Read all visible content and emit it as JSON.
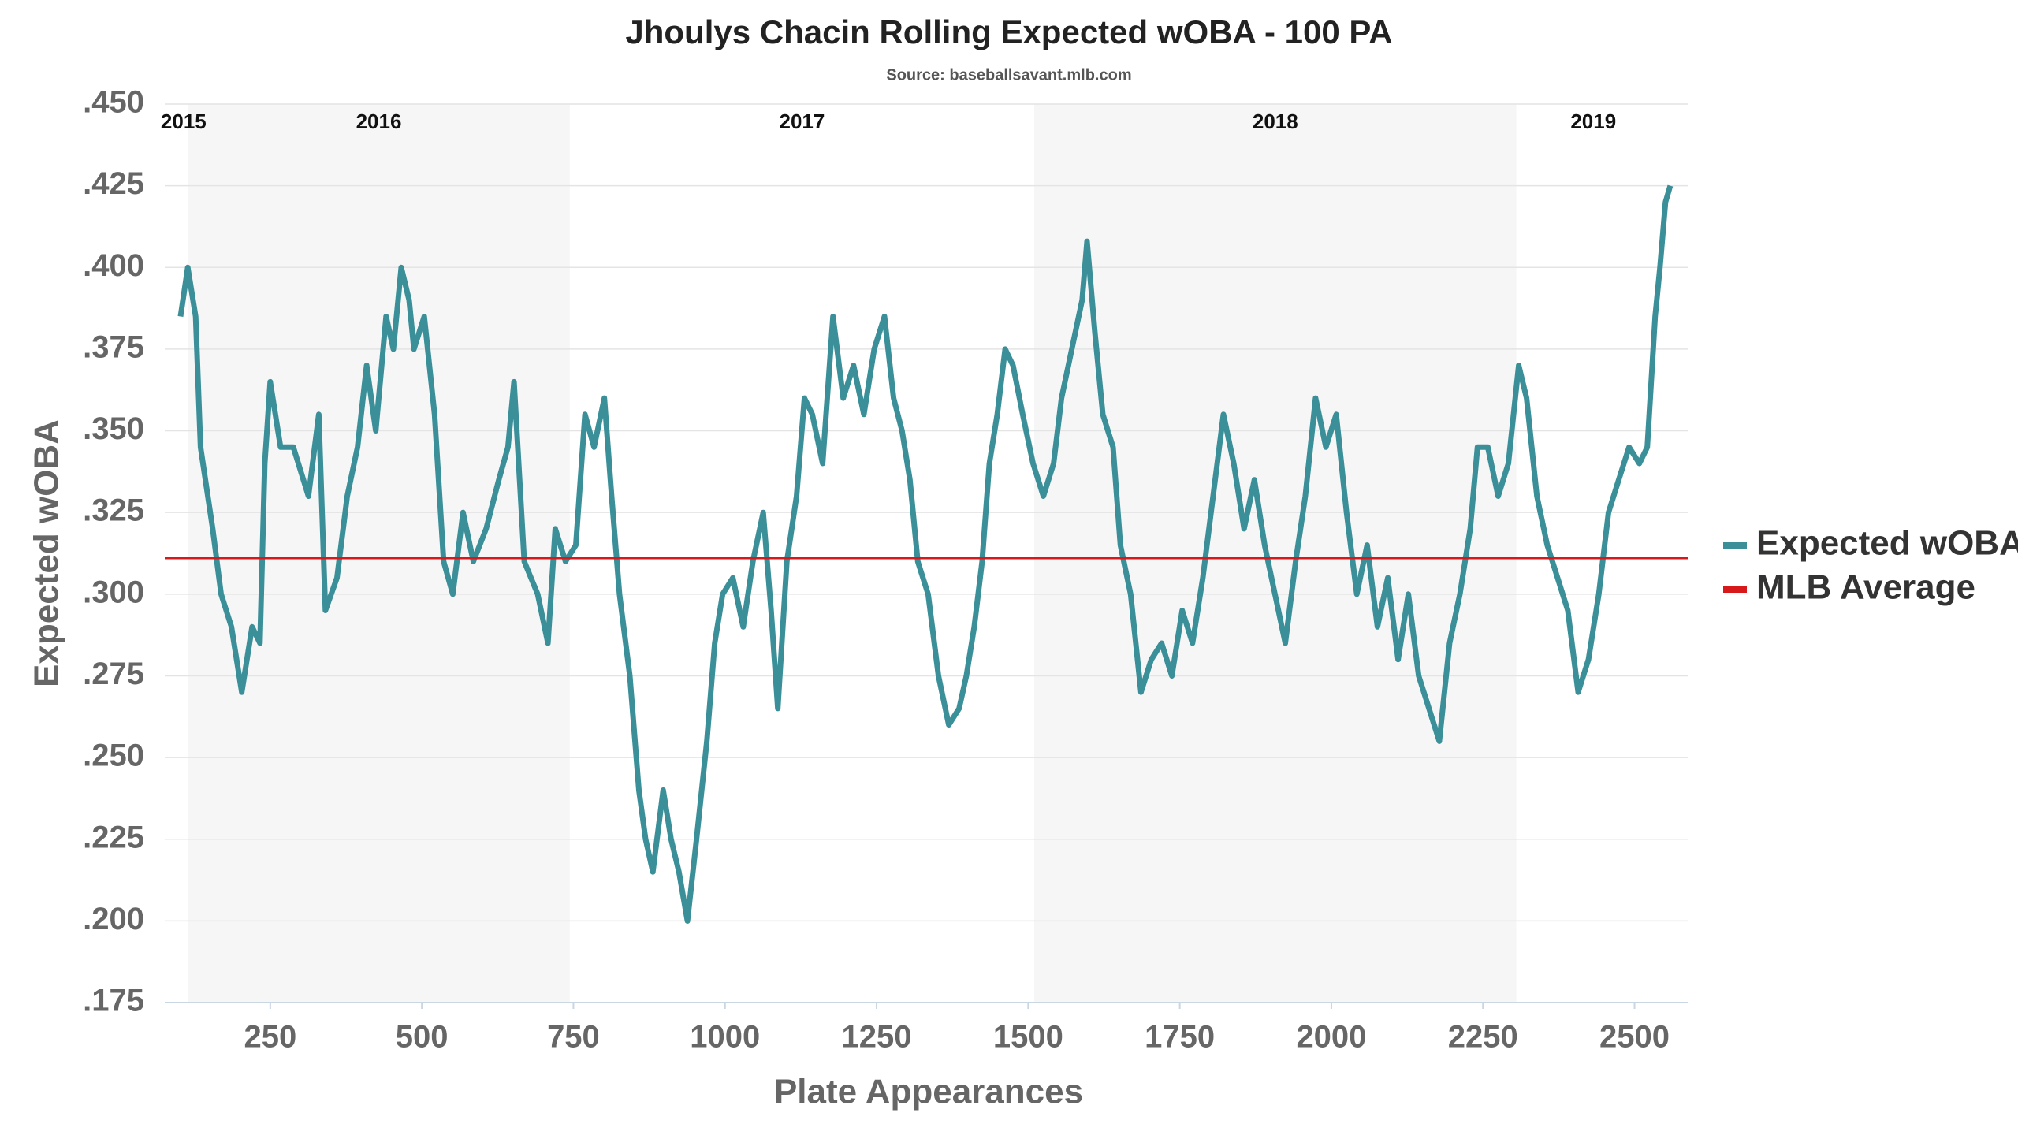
{
  "chart_data": {
    "type": "line",
    "title": "Jhoulys Chacin Rolling Expected wOBA - 100 PA",
    "subtitle": "Source: baseballsavant.mlb.com",
    "x_label": "Plate Appearances",
    "y_label": "Expected wOBA",
    "xlim": [
      76,
      2589
    ],
    "xticks": [
      250,
      500,
      750,
      1000,
      1250,
      1500,
      1750,
      2000,
      2250,
      2500
    ],
    "ylim": [
      0.175,
      0.45
    ],
    "yticks": [
      {
        "value": 0.175,
        "label": ".175"
      },
      {
        "value": 0.2,
        "label": ".200"
      },
      {
        "value": 0.225,
        "label": ".225"
      },
      {
        "value": 0.25,
        "label": ".250"
      },
      {
        "value": 0.275,
        "label": ".275"
      },
      {
        "value": 0.3,
        "label": ".300"
      },
      {
        "value": 0.325,
        "label": ".325"
      },
      {
        "value": 0.35,
        "label": ".350"
      },
      {
        "value": 0.375,
        "label": ".375"
      },
      {
        "value": 0.4,
        "label": ".400"
      },
      {
        "value": 0.425,
        "label": ".425"
      },
      {
        "value": 0.45,
        "label": ".450"
      }
    ],
    "grid": true,
    "legend": "right",
    "seasons": [
      {
        "label": "2015",
        "start": 100,
        "end": 114,
        "shaded": false
      },
      {
        "label": "2016",
        "start": 114,
        "end": 744,
        "shaded": true
      },
      {
        "label": "2017",
        "start": 744,
        "end": 1510,
        "shaded": false
      },
      {
        "label": "2018",
        "start": 1510,
        "end": 2305,
        "shaded": true
      },
      {
        "label": "2019",
        "start": 2305,
        "end": 2559,
        "shaded": false
      }
    ],
    "average": {
      "name": "MLB Average",
      "value": 0.311,
      "color": "#d7191c"
    },
    "x": [
      102,
      114,
      127,
      135,
      155,
      169,
      186,
      203,
      220,
      233,
      241,
      250,
      267,
      288,
      313,
      330,
      341,
      360,
      377,
      394,
      409,
      424,
      441,
      453,
      466,
      479,
      487,
      504,
      521,
      536,
      551,
      568,
      585,
      606,
      627,
      642,
      652,
      669,
      691,
      708,
      720,
      737,
      754,
      769,
      784,
      801,
      813,
      826,
      843,
      858,
      869,
      881,
      898,
      911,
      924,
      938,
      953,
      970,
      983,
      996,
      1013,
      1030,
      1046,
      1063,
      1076,
      1087,
      1102,
      1118,
      1131,
      1144,
      1161,
      1178,
      1195,
      1212,
      1229,
      1246,
      1263,
      1278,
      1292,
      1305,
      1318,
      1335,
      1352,
      1369,
      1386,
      1398,
      1411,
      1424,
      1436,
      1449,
      1462,
      1475,
      1491,
      1508,
      1525,
      1542,
      1555,
      1572,
      1589,
      1597,
      1610,
      1623,
      1640,
      1652,
      1669,
      1686,
      1703,
      1720,
      1737,
      1754,
      1771,
      1788,
      1805,
      1822,
      1839,
      1856,
      1873,
      1890,
      1907,
      1924,
      1941,
      1957,
      1974,
      1991,
      2008,
      2025,
      2042,
      2059,
      2076,
      2093,
      2110,
      2127,
      2144,
      2161,
      2178,
      2195,
      2212,
      2229,
      2241,
      2258,
      2275,
      2292,
      2309,
      2322,
      2339,
      2356,
      2373,
      2390,
      2407,
      2424,
      2441,
      2457,
      2474,
      2491,
      2508,
      2521,
      2534,
      2542,
      2551,
      2559
    ],
    "series": [
      {
        "name": "Expected wOBA",
        "color": "#3a8f98",
        "values": [
          0.385,
          0.4,
          0.385,
          0.345,
          0.32,
          0.3,
          0.29,
          0.27,
          0.29,
          0.285,
          0.34,
          0.365,
          0.345,
          0.345,
          0.33,
          0.355,
          0.295,
          0.305,
          0.33,
          0.345,
          0.37,
          0.35,
          0.385,
          0.375,
          0.4,
          0.39,
          0.375,
          0.385,
          0.355,
          0.31,
          0.3,
          0.325,
          0.31,
          0.32,
          0.335,
          0.345,
          0.365,
          0.31,
          0.3,
          0.285,
          0.32,
          0.31,
          0.315,
          0.355,
          0.345,
          0.36,
          0.33,
          0.3,
          0.275,
          0.24,
          0.225,
          0.215,
          0.24,
          0.225,
          0.215,
          0.2,
          0.225,
          0.255,
          0.285,
          0.3,
          0.305,
          0.29,
          0.31,
          0.325,
          0.295,
          0.265,
          0.31,
          0.33,
          0.36,
          0.355,
          0.34,
          0.385,
          0.36,
          0.37,
          0.355,
          0.375,
          0.385,
          0.36,
          0.35,
          0.335,
          0.31,
          0.3,
          0.275,
          0.26,
          0.265,
          0.275,
          0.29,
          0.31,
          0.34,
          0.355,
          0.375,
          0.37,
          0.355,
          0.34,
          0.33,
          0.34,
          0.36,
          0.375,
          0.39,
          0.408,
          0.38,
          0.355,
          0.345,
          0.315,
          0.3,
          0.27,
          0.28,
          0.285,
          0.275,
          0.295,
          0.285,
          0.305,
          0.33,
          0.355,
          0.34,
          0.32,
          0.335,
          0.315,
          0.3,
          0.285,
          0.31,
          0.33,
          0.36,
          0.345,
          0.355,
          0.325,
          0.3,
          0.315,
          0.29,
          0.305,
          0.28,
          0.3,
          0.275,
          0.265,
          0.255,
          0.285,
          0.3,
          0.32,
          0.345,
          0.345,
          0.33,
          0.34,
          0.37,
          0.36,
          0.33,
          0.315,
          0.305,
          0.295,
          0.27,
          0.28,
          0.3,
          0.325,
          0.335,
          0.345,
          0.34,
          0.345,
          0.385,
          0.4,
          0.42,
          0.425
        ]
      }
    ]
  }
}
